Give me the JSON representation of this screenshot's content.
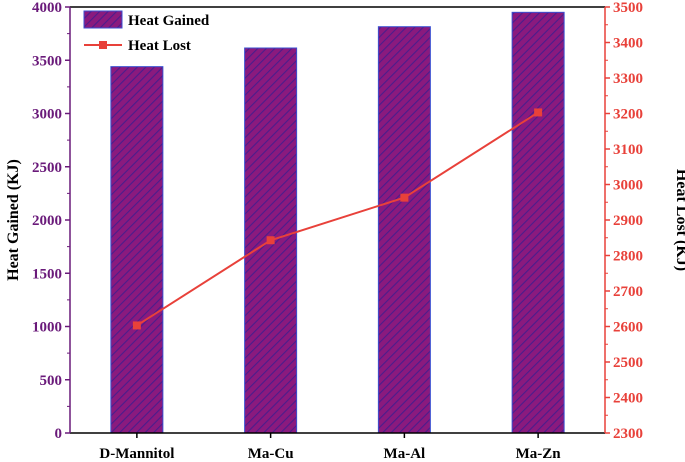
{
  "chart_data": {
    "type": "bar+line",
    "categories": [
      "D-Mannitol",
      "Ma-Cu",
      "Ma-Al",
      "Ma-Zn"
    ],
    "series": [
      {
        "name": "Heat Gained",
        "kind": "bar",
        "axis": "left",
        "values": [
          3440,
          3615,
          3815,
          3950
        ],
        "color": "#8a1a7e",
        "edge_color": "#3a4fd0"
      },
      {
        "name": "Heat Lost",
        "kind": "line",
        "axis": "right",
        "values": [
          2603,
          2843,
          2963,
          3203
        ],
        "color": "#e8413a"
      }
    ],
    "ylabel": "Heat Gained (KJ)",
    "y2label": "Heat Lost (KJ)",
    "ylim": [
      0,
      4000
    ],
    "y2lim": [
      2300,
      3500
    ],
    "yticks": [
      "0",
      "500",
      "1000",
      "1500",
      "2000",
      "2500",
      "3000",
      "3500",
      "4000"
    ],
    "y2ticks": [
      "2300",
      "2400",
      "2500",
      "2600",
      "2700",
      "2800",
      "2900",
      "3000",
      "3100",
      "3200",
      "3300",
      "3400",
      "3500"
    ],
    "legend_position": "top-left",
    "left_axis_color": "#6a1a7a",
    "right_axis_color": "#e8413a"
  }
}
